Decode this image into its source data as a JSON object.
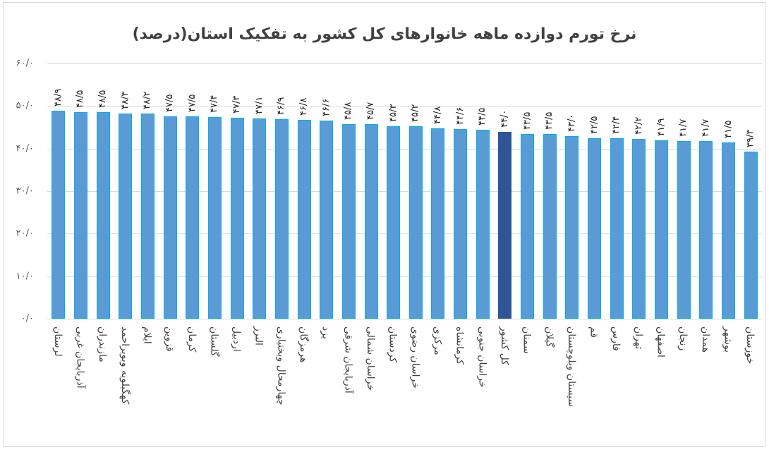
{
  "chart_data": {
    "type": "bar",
    "title": "نرخ تورم دوازده ماهه خانوارهای کل کشور به تفکیک استان(درصد)",
    "xlabel": "",
    "ylabel": "",
    "ylim": [
      0,
      60
    ],
    "y_ticks": [
      0,
      10,
      20,
      30,
      40,
      50,
      60
    ],
    "y_tick_labels": [
      "۰/۰",
      "۱۰/۰",
      "۲۰/۰",
      "۳۰/۰",
      "۴۰/۰",
      "۵۰/۰",
      "۶۰/۰"
    ],
    "grid": true,
    "legend": "none",
    "categories": [
      "لرستان",
      "آذربایجان غربی",
      "مازندران",
      "کهگیلویه وبویراحمد",
      "ایلام",
      "قزوین",
      "کرمان",
      "گلستان",
      "اردبیل",
      "البرز",
      "چهارمحال وبختیاری",
      "هرمزگان",
      "یزد",
      "آذربایجان شرقی",
      "خراسان شمالی",
      "کردستان",
      "خراسان رضوی",
      "مرکزی",
      "کرمانشاه",
      "خراسان جنوبی",
      "کل کشور",
      "سمنان",
      "گیلان",
      "سیستان وبلوچستان",
      "قم",
      "فارس",
      "تهران",
      "اصفهان",
      "زنجان",
      "همدان",
      "بوشهر",
      "خوزستان"
    ],
    "values": [
      48.9,
      48.5,
      48.5,
      48.3,
      48.2,
      47.5,
      47.5,
      47.4,
      47.3,
      47.1,
      46.9,
      46.8,
      46.6,
      45.8,
      45.7,
      45.3,
      45.2,
      44.8,
      44.6,
      44.5,
      44.0,
      43.5,
      43.5,
      43.0,
      42.5,
      42.4,
      42.2,
      41.9,
      41.7,
      41.7,
      41.5,
      39.3
    ],
    "value_labels": [
      "۴۸/۹",
      "۴۸/۵",
      "۴۸/۵",
      "۴۸/۳",
      "۴۸/۲",
      "۴۷/۵",
      "۴۷/۵",
      "۴۷/۴",
      "۴۷/۳",
      "۴۷/۱",
      "۴۶/۹",
      "۴۶/۸",
      "۴۶/۶",
      "۴۵/۸",
      "۴۵/۷",
      "۴۵/۳",
      "۴۵/۲",
      "۴۴/۸",
      "۴۴/۶",
      "۴۴/۵",
      "۴۴/۰",
      "۴۳/۵",
      "۴۳/۵",
      "۴۳/۰",
      "۴۲/۵",
      "۴۲/۴",
      "۴۲/۲",
      "۴۱/۹",
      "۴۱/۷",
      "۴۱/۷",
      "۴۱/۵",
      "۳۹/۳"
    ],
    "highlight_category": "کل کشور",
    "colors": {
      "bar": "#5b9bd5",
      "bar_border": "#00b0f0",
      "highlight": "#2f5597",
      "grid": "#d9d9d9"
    }
  }
}
